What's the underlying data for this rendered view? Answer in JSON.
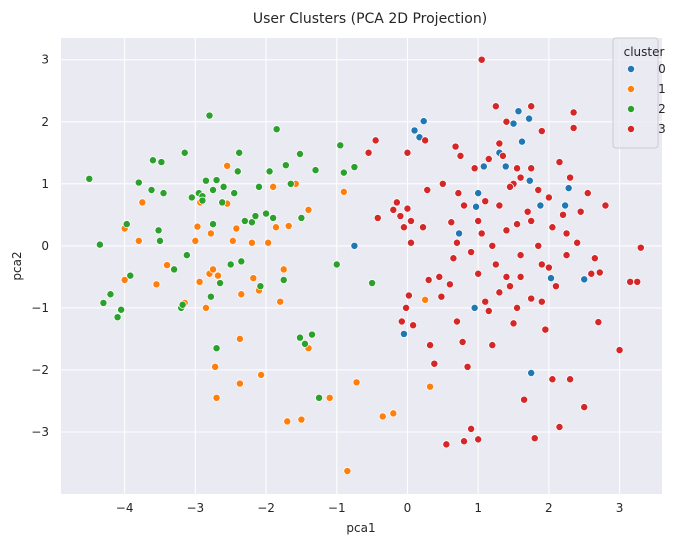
{
  "chart_data": {
    "type": "scatter",
    "title": "User Clusters (PCA 2D Projection)",
    "xlabel": "pca1",
    "ylabel": "pca2",
    "xlim": [
      -4.9,
      3.6
    ],
    "ylim": [
      -4.0,
      3.35
    ],
    "xticks": [
      -4,
      -3,
      -2,
      -1,
      0,
      1,
      2,
      3
    ],
    "yticks": [
      -3,
      -2,
      -1,
      0,
      1,
      2,
      3
    ],
    "grid": true,
    "legend": {
      "title": "cluster",
      "placement": "top-right"
    },
    "series": [
      {
        "name": "0",
        "color": "#1f77b4",
        "points": [
          [
            0.1,
            1.86
          ],
          [
            0.23,
            2.01
          ],
          [
            0.17,
            1.75
          ],
          [
            -0.75,
            0.0
          ],
          [
            -0.05,
            -1.42
          ],
          [
            0.73,
            0.2
          ],
          [
            0.97,
            0.63
          ],
          [
            0.95,
            -1.0
          ],
          [
            1.0,
            0.85
          ],
          [
            1.08,
            1.28
          ],
          [
            1.3,
            1.5
          ],
          [
            1.62,
            1.68
          ],
          [
            1.57,
            2.17
          ],
          [
            1.5,
            1.97
          ],
          [
            1.72,
            2.05
          ],
          [
            1.39,
            1.28
          ],
          [
            1.73,
            1.05
          ],
          [
            1.75,
            -2.05
          ],
          [
            2.23,
            0.65
          ],
          [
            2.28,
            0.93
          ],
          [
            2.5,
            -0.54
          ],
          [
            2.03,
            -0.52
          ],
          [
            1.88,
            0.65
          ]
        ]
      },
      {
        "name": "1",
        "color": "#ff7f0e",
        "points": [
          [
            -4.0,
            0.28
          ],
          [
            -4.0,
            -0.55
          ],
          [
            -3.8,
            0.08
          ],
          [
            -3.75,
            0.7
          ],
          [
            -3.55,
            -0.62
          ],
          [
            -3.4,
            -0.31
          ],
          [
            -3.15,
            -0.92
          ],
          [
            -3.0,
            0.08
          ],
          [
            -2.97,
            0.31
          ],
          [
            -2.94,
            -0.58
          ],
          [
            -2.93,
            0.7
          ],
          [
            -2.85,
            -1.0
          ],
          [
            -2.78,
            0.2
          ],
          [
            -2.8,
            -0.45
          ],
          [
            -2.75,
            -0.38
          ],
          [
            -2.72,
            -1.95
          ],
          [
            -2.7,
            -2.45
          ],
          [
            -2.68,
            -0.48
          ],
          [
            -2.55,
            0.68
          ],
          [
            -2.55,
            1.29
          ],
          [
            -2.47,
            0.08
          ],
          [
            -2.42,
            0.28
          ],
          [
            -2.37,
            -1.5
          ],
          [
            -2.37,
            -2.22
          ],
          [
            -2.35,
            -0.78
          ],
          [
            -2.2,
            0.05
          ],
          [
            -2.18,
            -0.52
          ],
          [
            -2.1,
            -0.72
          ],
          [
            -2.07,
            -2.08
          ],
          [
            -1.97,
            0.05
          ],
          [
            -1.9,
            0.95
          ],
          [
            -1.86,
            0.3
          ],
          [
            -1.8,
            -0.9
          ],
          [
            -1.75,
            -0.38
          ],
          [
            -1.7,
            -2.83
          ],
          [
            -1.68,
            0.32
          ],
          [
            -1.58,
            1.0
          ],
          [
            -1.5,
            -2.8
          ],
          [
            -1.4,
            0.58
          ],
          [
            -1.4,
            -1.65
          ],
          [
            -1.1,
            -2.45
          ],
          [
            -0.9,
            0.87
          ],
          [
            -0.85,
            -3.63
          ],
          [
            -0.72,
            -2.2
          ],
          [
            -0.35,
            -2.75
          ],
          [
            -0.2,
            -2.7
          ],
          [
            0.25,
            -0.87
          ],
          [
            0.32,
            -2.27
          ]
        ]
      },
      {
        "name": "2",
        "color": "#2ca02c",
        "points": [
          [
            -4.5,
            1.08
          ],
          [
            -4.35,
            0.02
          ],
          [
            -4.3,
            -0.92
          ],
          [
            -4.2,
            -0.78
          ],
          [
            -4.1,
            -1.15
          ],
          [
            -4.05,
            -1.03
          ],
          [
            -3.97,
            0.35
          ],
          [
            -3.92,
            -0.48
          ],
          [
            -3.8,
            1.02
          ],
          [
            -3.62,
            0.9
          ],
          [
            -3.6,
            1.38
          ],
          [
            -3.52,
            0.25
          ],
          [
            -3.5,
            0.08
          ],
          [
            -3.48,
            1.35
          ],
          [
            -3.45,
            0.85
          ],
          [
            -3.3,
            -0.38
          ],
          [
            -3.2,
            -1.0
          ],
          [
            -3.18,
            -0.95
          ],
          [
            -3.15,
            1.5
          ],
          [
            -3.12,
            -0.15
          ],
          [
            -3.05,
            0.78
          ],
          [
            -2.95,
            0.85
          ],
          [
            -2.9,
            0.8
          ],
          [
            -2.9,
            0.73
          ],
          [
            -2.85,
            1.05
          ],
          [
            -2.8,
            2.1
          ],
          [
            -2.78,
            -0.82
          ],
          [
            -2.75,
            0.9
          ],
          [
            -2.75,
            0.35
          ],
          [
            -2.7,
            -1.65
          ],
          [
            -2.7,
            1.06
          ],
          [
            -2.65,
            -0.6
          ],
          [
            -2.62,
            0.7
          ],
          [
            -2.6,
            0.95
          ],
          [
            -2.5,
            -0.3
          ],
          [
            -2.45,
            0.85
          ],
          [
            -2.4,
            1.2
          ],
          [
            -2.38,
            1.5
          ],
          [
            -2.35,
            -0.25
          ],
          [
            -2.3,
            0.4
          ],
          [
            -2.2,
            0.38
          ],
          [
            -2.15,
            0.48
          ],
          [
            -2.08,
            -0.65
          ],
          [
            -2.1,
            0.95
          ],
          [
            -2.0,
            0.52
          ],
          [
            -1.95,
            1.2
          ],
          [
            -1.9,
            0.45
          ],
          [
            -1.85,
            1.88
          ],
          [
            -1.75,
            -0.55
          ],
          [
            -1.72,
            1.3
          ],
          [
            -1.65,
            1.0
          ],
          [
            -1.52,
            1.48
          ],
          [
            -1.52,
            -1.48
          ],
          [
            -1.5,
            0.45
          ],
          [
            -1.45,
            -1.58
          ],
          [
            -1.35,
            -1.43
          ],
          [
            -1.3,
            1.22
          ],
          [
            -1.25,
            -2.45
          ],
          [
            -1.0,
            -0.3
          ],
          [
            -0.95,
            1.62
          ],
          [
            -0.9,
            1.18
          ],
          [
            -0.75,
            1.27
          ],
          [
            -0.5,
            -0.6
          ]
        ]
      },
      {
        "name": "3",
        "color": "#d62728",
        "points": [
          [
            1.05,
            3.0
          ],
          [
            -0.55,
            1.5
          ],
          [
            -0.45,
            1.7
          ],
          [
            -0.42,
            0.45
          ],
          [
            -0.2,
            0.58
          ],
          [
            -0.15,
            0.7
          ],
          [
            -0.1,
            0.48
          ],
          [
            0.0,
            1.5
          ],
          [
            0.0,
            0.6
          ],
          [
            0.05,
            0.4
          ],
          [
            0.05,
            0.05
          ],
          [
            -0.05,
            0.3
          ],
          [
            -0.08,
            -1.22
          ],
          [
            -0.02,
            -1.0
          ],
          [
            0.02,
            -0.8
          ],
          [
            0.08,
            -1.28
          ],
          [
            0.22,
            0.3
          ],
          [
            0.25,
            1.7
          ],
          [
            0.28,
            0.9
          ],
          [
            0.3,
            -0.55
          ],
          [
            0.32,
            -1.6
          ],
          [
            0.38,
            -1.9
          ],
          [
            0.45,
            -0.5
          ],
          [
            0.48,
            -0.82
          ],
          [
            0.5,
            1.0
          ],
          [
            0.55,
            -3.2
          ],
          [
            0.6,
            -0.62
          ],
          [
            0.62,
            0.38
          ],
          [
            0.65,
            -0.2
          ],
          [
            0.68,
            1.6
          ],
          [
            0.7,
            -1.22
          ],
          [
            0.72,
            0.85
          ],
          [
            0.75,
            1.45
          ],
          [
            0.78,
            -1.55
          ],
          [
            0.8,
            -3.15
          ],
          [
            0.85,
            -1.95
          ],
          [
            0.9,
            -2.95
          ],
          [
            0.95,
            1.25
          ],
          [
            1.0,
            -3.12
          ],
          [
            1.0,
            -0.45
          ],
          [
            1.05,
            0.2
          ],
          [
            1.1,
            0.72
          ],
          [
            1.15,
            -1.05
          ],
          [
            1.2,
            -1.6
          ],
          [
            1.25,
            2.25
          ],
          [
            1.25,
            -0.3
          ],
          [
            1.3,
            0.65
          ],
          [
            1.35,
            1.45
          ],
          [
            1.4,
            0.25
          ],
          [
            1.45,
            -0.65
          ],
          [
            1.5,
            1.0
          ],
          [
            1.5,
            -1.25
          ],
          [
            1.55,
            0.35
          ],
          [
            1.55,
            1.25
          ],
          [
            1.6,
            -0.15
          ],
          [
            1.65,
            -2.48
          ],
          [
            1.7,
            0.55
          ],
          [
            1.75,
            -0.85
          ],
          [
            1.8,
            -3.1
          ],
          [
            1.85,
            0.0
          ],
          [
            1.9,
            1.85
          ],
          [
            1.9,
            -0.3
          ],
          [
            1.95,
            -1.35
          ],
          [
            2.0,
            0.78
          ],
          [
            2.05,
            -2.15
          ],
          [
            2.05,
            0.3
          ],
          [
            2.1,
            -0.65
          ],
          [
            2.15,
            1.35
          ],
          [
            2.15,
            -2.92
          ],
          [
            2.2,
            0.5
          ],
          [
            2.25,
            -0.15
          ],
          [
            2.3,
            1.1
          ],
          [
            2.3,
            -2.15
          ],
          [
            2.35,
            2.15
          ],
          [
            2.35,
            1.9
          ],
          [
            2.4,
            0.05
          ],
          [
            2.45,
            0.55
          ],
          [
            2.5,
            -2.6
          ],
          [
            2.55,
            0.85
          ],
          [
            2.6,
            -0.45
          ],
          [
            2.65,
            -0.2
          ],
          [
            2.7,
            -1.23
          ],
          [
            2.72,
            -0.43
          ],
          [
            2.8,
            0.65
          ],
          [
            3.0,
            -1.68
          ],
          [
            3.15,
            -0.58
          ],
          [
            3.25,
            -0.58
          ],
          [
            3.3,
            -0.03
          ],
          [
            1.15,
            1.4
          ],
          [
            1.3,
            1.65
          ],
          [
            1.45,
            0.95
          ],
          [
            1.6,
            1.1
          ],
          [
            1.75,
            0.4
          ],
          [
            1.85,
            0.9
          ],
          [
            1.4,
            -0.5
          ],
          [
            1.2,
            0.0
          ],
          [
            1.6,
            -0.5
          ],
          [
            1.9,
            -0.9
          ],
          [
            2.25,
            0.2
          ],
          [
            1.3,
            -0.75
          ],
          [
            1.55,
            -1.0
          ],
          [
            1.0,
            0.4
          ],
          [
            0.8,
            0.65
          ],
          [
            0.9,
            -0.1
          ],
          [
            1.1,
            -0.9
          ],
          [
            0.7,
            0.05
          ],
          [
            1.75,
            1.25
          ],
          [
            2.0,
            -0.35
          ],
          [
            1.4,
            2.0
          ],
          [
            1.75,
            2.25
          ]
        ]
      }
    ]
  }
}
